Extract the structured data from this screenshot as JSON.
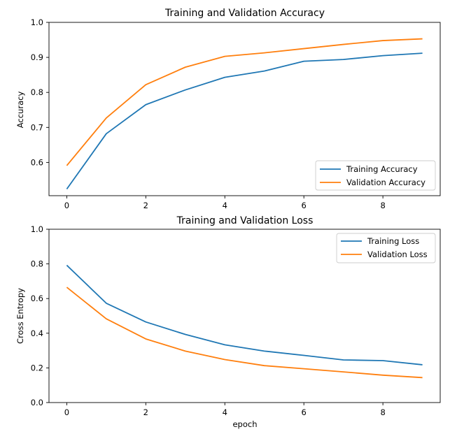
{
  "chart_data": [
    {
      "type": "line",
      "title": "Training and Validation Accuracy",
      "xlabel": "",
      "ylabel": "Accuracy",
      "xlim": [
        -0.45,
        9.45
      ],
      "ylim": [
        0.505,
        1.0
      ],
      "xticks": [
        0,
        2,
        4,
        6,
        8
      ],
      "xtick_labels": [
        "0",
        "2",
        "4",
        "6",
        "8"
      ],
      "yticks": [
        0.6,
        0.7,
        0.8,
        0.9,
        1.0
      ],
      "ytick_labels": [
        "0.6",
        "0.7",
        "0.8",
        "0.9",
        "1.0"
      ],
      "legend_position": "lower-right",
      "x": [
        0,
        1,
        2,
        3,
        4,
        5,
        6,
        7,
        8,
        9
      ],
      "series": [
        {
          "name": "Training Accuracy",
          "color": "#1f77b4",
          "values": [
            0.524,
            0.682,
            0.765,
            0.807,
            0.843,
            0.861,
            0.889,
            0.894,
            0.905,
            0.912
          ]
        },
        {
          "name": "Validation Accuracy",
          "color": "#ff7f0e",
          "values": [
            0.591,
            0.727,
            0.822,
            0.872,
            0.903,
            0.913,
            0.925,
            0.937,
            0.948,
            0.953
          ]
        }
      ]
    },
    {
      "type": "line",
      "title": "Training and Validation Loss",
      "xlabel": "epoch",
      "ylabel": "Cross Entropy",
      "xlim": [
        -0.45,
        9.45
      ],
      "ylim": [
        0.0,
        1.0
      ],
      "xticks": [
        0,
        2,
        4,
        6,
        8
      ],
      "xtick_labels": [
        "0",
        "2",
        "4",
        "6",
        "8"
      ],
      "yticks": [
        0.0,
        0.2,
        0.4,
        0.6,
        0.8,
        1.0
      ],
      "ytick_labels": [
        "0.0",
        "0.2",
        "0.4",
        "0.6",
        "0.8",
        "1.0"
      ],
      "legend_position": "upper-right",
      "x": [
        0,
        1,
        2,
        3,
        4,
        5,
        6,
        7,
        8,
        9
      ],
      "series": [
        {
          "name": "Training Loss",
          "color": "#1f77b4",
          "values": [
            0.792,
            0.573,
            0.465,
            0.393,
            0.333,
            0.297,
            0.272,
            0.246,
            0.242,
            0.218
          ]
        },
        {
          "name": "Validation Loss",
          "color": "#ff7f0e",
          "values": [
            0.665,
            0.483,
            0.367,
            0.297,
            0.248,
            0.213,
            0.195,
            0.177,
            0.158,
            0.144
          ]
        }
      ]
    }
  ]
}
